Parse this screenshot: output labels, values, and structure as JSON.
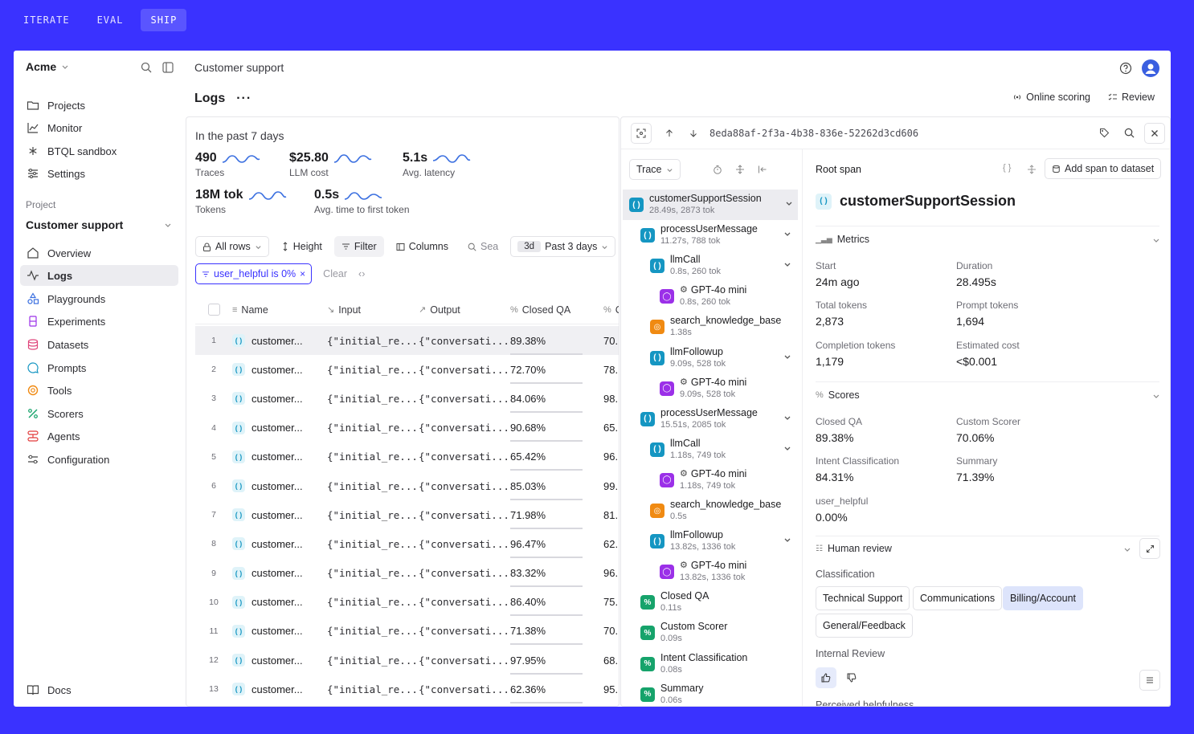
{
  "mode_tabs": [
    {
      "label": "ITERATE",
      "active": false
    },
    {
      "label": "EVAL",
      "active": false
    },
    {
      "label": "SHIP",
      "active": true
    }
  ],
  "sidebar": {
    "org": "Acme",
    "nav_top": [
      {
        "label": "Projects",
        "icon": "folder-icon"
      },
      {
        "label": "Monitor",
        "icon": "chart-line-icon"
      },
      {
        "label": "BTQL sandbox",
        "icon": "asterisk-icon"
      },
      {
        "label": "Settings",
        "icon": "sliders-icon"
      }
    ],
    "project_label": "Project",
    "project_name": "Customer support",
    "nav_project": [
      {
        "label": "Overview",
        "icon": "home-icon",
        "active": false
      },
      {
        "label": "Logs",
        "icon": "activity-icon",
        "active": true
      },
      {
        "label": "Playgrounds",
        "icon": "shapes-icon",
        "active": false
      },
      {
        "label": "Experiments",
        "icon": "beaker-icon",
        "active": false
      },
      {
        "label": "Datasets",
        "icon": "database-icon",
        "active": false
      },
      {
        "label": "Prompts",
        "icon": "message-icon",
        "active": false
      },
      {
        "label": "Tools",
        "icon": "tool-icon",
        "active": false
      },
      {
        "label": "Scorers",
        "icon": "percent-icon",
        "active": false
      },
      {
        "label": "Agents",
        "icon": "agent-icon",
        "active": false
      },
      {
        "label": "Configuration",
        "icon": "config-icon",
        "active": false
      }
    ],
    "docs": "Docs"
  },
  "header": {
    "breadcrumb": "Customer support",
    "page_title": "Logs",
    "online_scoring": "Online scoring",
    "review": "Review"
  },
  "logs": {
    "period": "In the past 7 days",
    "metrics": [
      {
        "value": "490",
        "label": "Traces"
      },
      {
        "value": "$25.80",
        "label": "LLM cost"
      },
      {
        "value": "5.1s",
        "label": "Avg. latency"
      },
      {
        "value": "18M tok",
        "label": "Tokens"
      },
      {
        "value": "0.5s",
        "label": "Avg. time to first token"
      }
    ],
    "toolbar": {
      "all_rows": "All rows",
      "height": "Height",
      "filter": "Filter",
      "columns": "Columns",
      "search_placeholder": "Sea",
      "days_tag": "3d",
      "days_label": "Past 3 days"
    },
    "filter_chip": "user_helpful is 0%",
    "clear": "Clear",
    "columns": {
      "name": "Name",
      "input": "Input",
      "output": "Output",
      "closed_qa": "Closed QA",
      "custom": "C"
    },
    "rows": [
      {
        "n": "1",
        "name": "customer...",
        "input": "{\"initial_re...",
        "output": "{\"conversati...",
        "qa": "89.38%",
        "c": "70."
      },
      {
        "n": "2",
        "name": "customer...",
        "input": "{\"initial_re...",
        "output": "{\"conversati...",
        "qa": "72.70%",
        "c": "78."
      },
      {
        "n": "3",
        "name": "customer...",
        "input": "{\"initial_re...",
        "output": "{\"conversati...",
        "qa": "84.06%",
        "c": "98."
      },
      {
        "n": "4",
        "name": "customer...",
        "input": "{\"initial_re...",
        "output": "{\"conversati...",
        "qa": "90.68%",
        "c": "65."
      },
      {
        "n": "5",
        "name": "customer...",
        "input": "{\"initial_re...",
        "output": "{\"conversati...",
        "qa": "65.42%",
        "c": "96."
      },
      {
        "n": "6",
        "name": "customer...",
        "input": "{\"initial_re...",
        "output": "{\"conversati...",
        "qa": "85.03%",
        "c": "99."
      },
      {
        "n": "7",
        "name": "customer...",
        "input": "{\"initial_re...",
        "output": "{\"conversati...",
        "qa": "71.98%",
        "c": "81."
      },
      {
        "n": "8",
        "name": "customer...",
        "input": "{\"initial_re...",
        "output": "{\"conversati...",
        "qa": "96.47%",
        "c": "62."
      },
      {
        "n": "9",
        "name": "customer...",
        "input": "{\"initial_re...",
        "output": "{\"conversati...",
        "qa": "83.32%",
        "c": "96."
      },
      {
        "n": "10",
        "name": "customer...",
        "input": "{\"initial_re...",
        "output": "{\"conversati...",
        "qa": "86.40%",
        "c": "75."
      },
      {
        "n": "11",
        "name": "customer...",
        "input": "{\"initial_re...",
        "output": "{\"conversati...",
        "qa": "71.38%",
        "c": "70."
      },
      {
        "n": "12",
        "name": "customer...",
        "input": "{\"initial_re...",
        "output": "{\"conversati...",
        "qa": "97.95%",
        "c": "68."
      },
      {
        "n": "13",
        "name": "customer...",
        "input": "{\"initial_re...",
        "output": "{\"conversati...",
        "qa": "62.36%",
        "c": "95."
      }
    ]
  },
  "trace": {
    "trace_id": "8eda88af-2f3a-4b38-836e-52262d3cd606",
    "view": "Trace",
    "nodes": [
      {
        "name": "customerSupportSession",
        "meta": "28.49s, 2873 tok",
        "kind": "function",
        "depth": 0,
        "chevron": true,
        "active": true
      },
      {
        "name": "processUserMessage",
        "meta": "11.27s, 788 tok",
        "kind": "function",
        "depth": 1,
        "chevron": true
      },
      {
        "name": "llmCall",
        "meta": "0.8s, 260 tok",
        "kind": "function",
        "depth": 2,
        "chevron": true
      },
      {
        "name": "GPT-4o mini",
        "meta": "0.8s, 260 tok",
        "kind": "llm",
        "depth": 3
      },
      {
        "name": "search_knowledge_base",
        "meta": "1.38s",
        "kind": "tool",
        "depth": 2
      },
      {
        "name": "llmFollowup",
        "meta": "9.09s, 528 tok",
        "kind": "function",
        "depth": 2,
        "chevron": true
      },
      {
        "name": "GPT-4o mini",
        "meta": "9.09s, 528 tok",
        "kind": "llm",
        "depth": 3
      },
      {
        "name": "processUserMessage",
        "meta": "15.51s, 2085 tok",
        "kind": "function",
        "depth": 1,
        "chevron": true
      },
      {
        "name": "llmCall",
        "meta": "1.18s, 749 tok",
        "kind": "function",
        "depth": 2,
        "chevron": true
      },
      {
        "name": "GPT-4o mini",
        "meta": "1.18s, 749 tok",
        "kind": "llm",
        "depth": 3
      },
      {
        "name": "search_knowledge_base",
        "meta": "0.5s",
        "kind": "tool",
        "depth": 2
      },
      {
        "name": "llmFollowup",
        "meta": "13.82s, 1336 tok",
        "kind": "function",
        "depth": 2,
        "chevron": true
      },
      {
        "name": "GPT-4o mini",
        "meta": "13.82s, 1336 tok",
        "kind": "llm",
        "depth": 3
      },
      {
        "name": "Closed QA",
        "meta": "0.11s",
        "kind": "scorer",
        "depth": 1
      },
      {
        "name": "Custom Scorer",
        "meta": "0.09s",
        "kind": "scorer",
        "depth": 1
      },
      {
        "name": "Intent Classification",
        "meta": "0.08s",
        "kind": "scorer",
        "depth": 1
      },
      {
        "name": "Summary",
        "meta": "0.06s",
        "kind": "scorer",
        "depth": 1
      }
    ],
    "detail": {
      "root_span": "Root span",
      "add_to_dataset": "Add span to dataset",
      "span_title": "customerSupportSession",
      "metrics_title": "Metrics",
      "metrics": [
        {
          "label": "Start",
          "value": "24m ago"
        },
        {
          "label": "Duration",
          "value": "28.495s"
        },
        {
          "label": "Total tokens",
          "value": "2,873"
        },
        {
          "label": "Prompt tokens",
          "value": "1,694"
        },
        {
          "label": "Completion tokens",
          "value": "1,179"
        },
        {
          "label": "Estimated cost",
          "value": "<$0.001"
        }
      ],
      "scores_title": "Scores",
      "scores": [
        {
          "label": "Closed QA",
          "value": "89.38%"
        },
        {
          "label": "Custom Scorer",
          "value": "70.06%"
        },
        {
          "label": "Intent Classification",
          "value": "84.31%"
        },
        {
          "label": "Summary",
          "value": "71.39%"
        },
        {
          "label": "user_helpful",
          "value": "0.00%"
        }
      ],
      "human_review_title": "Human review",
      "classification_label": "Classification",
      "classification_options": [
        {
          "label": "Technical Support",
          "selected": false
        },
        {
          "label": "Communications",
          "selected": false
        },
        {
          "label": "Billing/Account",
          "selected": true
        },
        {
          "label": "General/Feedback",
          "selected": false
        }
      ],
      "internal_review_label": "Internal Review",
      "perceived_helpfulness_label": "Perceived helpfulness"
    }
  },
  "colors": {
    "accent": "#3a32ff",
    "function": "#1596c2",
    "llm": "#9b30e8",
    "tool": "#f08a12",
    "scorer": "#16a36b"
  }
}
